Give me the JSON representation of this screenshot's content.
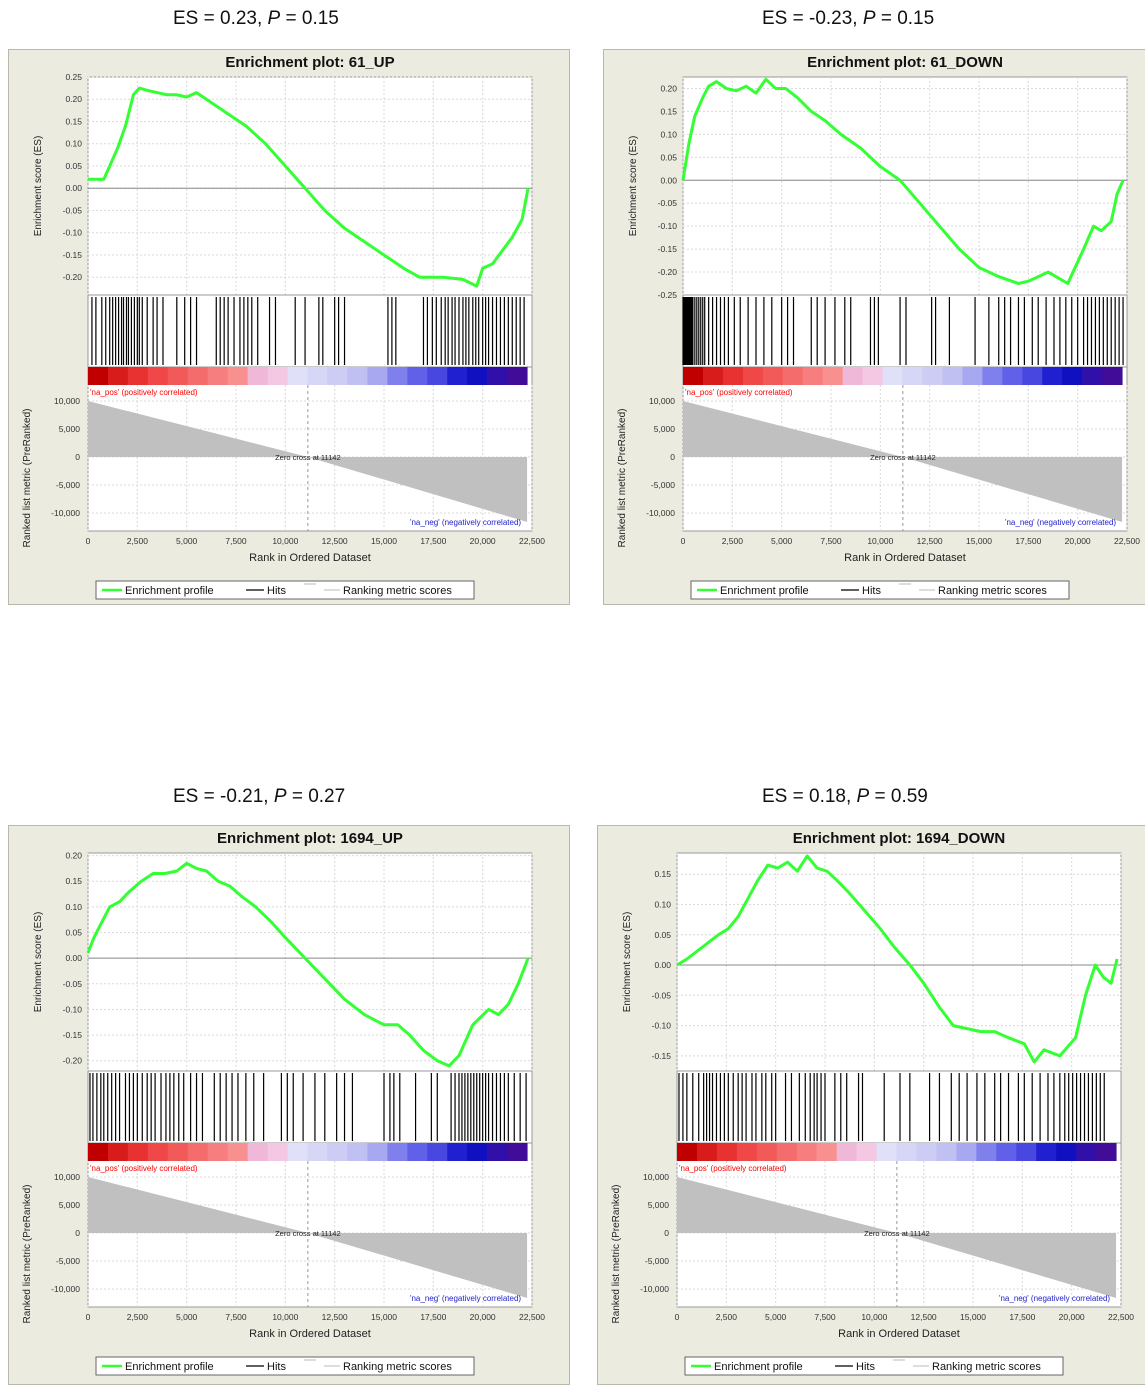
{
  "colors": {
    "frame": "#ecebe0",
    "frame_border": "#b9b8aa",
    "plot_bg": "#ffffff",
    "grid": "#d9d9d9",
    "es_line": "#33ff33",
    "hits": "#000000",
    "metric_fill": "#c0c0c0",
    "pos_label": "#ff0000",
    "neg_label": "#2222cc"
  },
  "common": {
    "ylabel_es": "Enrichment score (ES)",
    "ylabel_metric": "Ranked list metric (PreRanked)",
    "xlabel": "Rank in Ordered Dataset",
    "pos_label": "'na_pos' (positively correlated)",
    "neg_label": "'na_neg' (negatively correlated)",
    "zero_cross_label": "Zero cross at 11142",
    "legend": [
      "Enrichment profile",
      "Hits",
      "Ranking metric scores"
    ],
    "x_ticks": [
      "0",
      "2,500",
      "5,000",
      "7,500",
      "10,000",
      "12,500",
      "15,000",
      "17,500",
      "20,000",
      "22,500"
    ],
    "metric_ticks": [
      "10,000",
      "5,000",
      "0",
      "-5,000",
      "-10,000"
    ],
    "zero_cross_x": 11142
  },
  "captions": [
    {
      "pre": "ES = 0.23, ",
      "p": "P",
      "post": " = 0.15"
    },
    {
      "pre": "ES = -0.23, ",
      "p": "P",
      "post": " = 0.15"
    },
    {
      "pre": "ES = -0.21, ",
      "p": "P",
      "post": " = 0.27"
    },
    {
      "pre": "ES = 0.18, ",
      "p": "P",
      "post": " = 0.59"
    }
  ],
  "chart_data": [
    {
      "type": "line",
      "title": "Enrichment plot: 61_UP",
      "xlabel": "Rank in Ordered Dataset",
      "ylabel": "Enrichment score (ES)",
      "xlim": [
        0,
        22500
      ],
      "ylim": [
        -0.24,
        0.25
      ],
      "y_ticks": [
        "0.25",
        "0.20",
        "0.15",
        "0.10",
        "0.05",
        "0.00",
        "-0.05",
        "-0.10",
        "-0.15",
        "-0.20"
      ],
      "y_tick_values": [
        0.25,
        0.2,
        0.15,
        0.1,
        0.05,
        0.0,
        -0.05,
        -0.1,
        -0.15,
        -0.2
      ],
      "series": [
        {
          "name": "Enrichment profile",
          "x": [
            0,
            800,
            1200,
            1500,
            1900,
            2300,
            2600,
            3000,
            3500,
            4000,
            4500,
            5000,
            5500,
            6000,
            7000,
            8000,
            9000,
            10000,
            11000,
            12000,
            13000,
            14000,
            15000,
            16000,
            16800,
            17300,
            18000,
            19000,
            19700,
            20000,
            20500,
            21000,
            21500,
            22000,
            22300
          ],
          "y": [
            0.02,
            0.02,
            0.06,
            0.09,
            0.14,
            0.21,
            0.225,
            0.22,
            0.215,
            0.21,
            0.21,
            0.205,
            0.215,
            0.2,
            0.17,
            0.14,
            0.1,
            0.05,
            0.0,
            -0.05,
            -0.09,
            -0.12,
            -0.15,
            -0.18,
            -0.2,
            -0.2,
            -0.2,
            -0.205,
            -0.22,
            -0.18,
            -0.17,
            -0.14,
            -0.11,
            -0.07,
            0.0
          ]
        }
      ],
      "hits": [
        200,
        400,
        700,
        900,
        1100,
        1250,
        1400,
        1550,
        1700,
        1800,
        1950,
        2050,
        2200,
        2350,
        2500,
        2600,
        2750,
        3000,
        3300,
        3500,
        3800,
        4500,
        4900,
        5200,
        5500,
        6500,
        6700,
        6900,
        7100,
        7400,
        7700,
        7900,
        8100,
        8300,
        8600,
        9200,
        9500,
        10500,
        11000,
        11700,
        11900,
        12500,
        12700,
        13000,
        15200,
        15400,
        15600,
        17000,
        17200,
        17450,
        17650,
        17900,
        18100,
        18250,
        18450,
        18600,
        18800,
        19000,
        19150,
        19300,
        19500,
        19650,
        19800,
        20000,
        20150,
        20300,
        20500,
        20700,
        20900,
        21100,
        21300,
        21500,
        21700,
        21900,
        22100
      ]
    },
    {
      "type": "line",
      "title": "Enrichment plot: 61_DOWN",
      "xlabel": "Rank in Ordered Dataset",
      "ylabel": "Enrichment score (ES)",
      "xlim": [
        0,
        22500
      ],
      "ylim": [
        -0.25,
        0.225
      ],
      "y_ticks": [
        "0.20",
        "0.15",
        "0.10",
        "0.05",
        "0.00",
        "-0.05",
        "-0.10",
        "-0.15",
        "-0.20",
        "-0.25"
      ],
      "y_tick_values": [
        0.2,
        0.15,
        0.1,
        0.05,
        0.0,
        -0.05,
        -0.1,
        -0.15,
        -0.2,
        -0.25
      ],
      "series": [
        {
          "name": "Enrichment profile",
          "x": [
            0,
            300,
            600,
            1000,
            1300,
            1700,
            2200,
            2700,
            3200,
            3700,
            4200,
            4700,
            5200,
            5800,
            6500,
            7200,
            8000,
            9000,
            10000,
            11000,
            12000,
            13000,
            14000,
            15000,
            16000,
            17000,
            17500,
            18500,
            19500,
            20300,
            20800,
            21200,
            21700,
            22000,
            22300
          ],
          "y": [
            0.0,
            0.08,
            0.14,
            0.18,
            0.205,
            0.215,
            0.2,
            0.195,
            0.205,
            0.19,
            0.22,
            0.2,
            0.2,
            0.18,
            0.15,
            0.13,
            0.1,
            0.07,
            0.03,
            0.0,
            -0.05,
            -0.1,
            -0.15,
            -0.19,
            -0.21,
            -0.225,
            -0.22,
            -0.2,
            -0.225,
            -0.15,
            -0.1,
            -0.11,
            -0.09,
            -0.03,
            0.0
          ]
        }
      ],
      "hits": [
        0,
        50,
        100,
        150,
        200,
        250,
        300,
        350,
        400,
        450,
        500,
        600,
        700,
        800,
        900,
        1000,
        1100,
        1300,
        1500,
        1700,
        1900,
        2100,
        2300,
        2600,
        2900,
        3300,
        3700,
        4100,
        4500,
        5000,
        5300,
        5600,
        6500,
        6800,
        7200,
        7700,
        8200,
        8500,
        9500,
        9700,
        9900,
        11000,
        11300,
        12600,
        12800,
        13500,
        14800,
        15500,
        16000,
        16300,
        16600,
        17000,
        17300,
        17700,
        18000,
        18400,
        18800,
        19100,
        19400,
        19700,
        20000,
        20300,
        20500,
        20700,
        20900,
        21100,
        21300,
        21500,
        21700,
        21900,
        22100,
        22300
      ]
    },
    {
      "type": "line",
      "title": "Enrichment plot: 1694_UP",
      "xlabel": "Rank in Ordered Dataset",
      "ylabel": "Enrichment score (ES)",
      "xlim": [
        0,
        22500
      ],
      "ylim": [
        -0.22,
        0.205
      ],
      "y_ticks": [
        "0.20",
        "0.15",
        "0.10",
        "0.05",
        "0.00",
        "-0.05",
        "-0.10",
        "-0.15",
        "-0.20"
      ],
      "y_tick_values": [
        0.2,
        0.15,
        0.1,
        0.05,
        0.0,
        -0.05,
        -0.1,
        -0.15,
        -0.2
      ],
      "series": [
        {
          "name": "Enrichment profile",
          "x": [
            0,
            300,
            700,
            1100,
            1600,
            2100,
            2700,
            3300,
            3900,
            4500,
            5000,
            5500,
            6000,
            6600,
            7200,
            7800,
            8500,
            9300,
            10000,
            11000,
            12000,
            13000,
            14000,
            15000,
            15700,
            16300,
            17000,
            17700,
            18300,
            18800,
            19500,
            20300,
            20800,
            21300,
            21800,
            22300
          ],
          "y": [
            0.01,
            0.04,
            0.07,
            0.1,
            0.11,
            0.13,
            0.15,
            0.165,
            0.165,
            0.17,
            0.185,
            0.175,
            0.17,
            0.15,
            0.14,
            0.12,
            0.1,
            0.07,
            0.04,
            0.0,
            -0.04,
            -0.08,
            -0.11,
            -0.13,
            -0.13,
            -0.15,
            -0.18,
            -0.2,
            -0.21,
            -0.19,
            -0.13,
            -0.1,
            -0.11,
            -0.09,
            -0.05,
            0.0
          ]
        }
      ],
      "hits": [
        100,
        250,
        450,
        650,
        800,
        1000,
        1200,
        1400,
        1600,
        1900,
        2100,
        2300,
        2500,
        2750,
        3000,
        3200,
        3400,
        3700,
        3950,
        4150,
        4350,
        4600,
        4850,
        5200,
        5500,
        5800,
        6400,
        6700,
        7000,
        7300,
        7600,
        8000,
        8400,
        8900,
        9800,
        10100,
        10400,
        10900,
        11500,
        12000,
        12600,
        13000,
        13400,
        15000,
        15300,
        15500,
        15800,
        16600,
        17400,
        17700,
        18400,
        18600,
        18800,
        18950,
        19100,
        19250,
        19400,
        19550,
        19700,
        19850,
        20000,
        20150,
        20300,
        20500,
        20700,
        20900,
        21100,
        21300,
        21600,
        21900,
        22200
      ]
    },
    {
      "type": "line",
      "title": "Enrichment plot: 1694_DOWN",
      "xlabel": "Rank in Ordered Dataset",
      "ylabel": "Enrichment score (ES)",
      "xlim": [
        0,
        22500
      ],
      "ylim": [
        -0.175,
        0.185
      ],
      "y_ticks": [
        "0.15",
        "0.10",
        "0.05",
        "0.00",
        "-0.05",
        "-0.10",
        "-0.15"
      ],
      "y_tick_values": [
        0.15,
        0.1,
        0.05,
        0.0,
        -0.05,
        -0.1,
        -0.15
      ],
      "series": [
        {
          "name": "Enrichment profile",
          "x": [
            0,
            500,
            900,
            1300,
            1700,
            2100,
            2600,
            3100,
            3600,
            4100,
            4600,
            5100,
            5600,
            6100,
            6600,
            7100,
            7600,
            8100,
            8700,
            9500,
            10300,
            11000,
            11800,
            12500,
            13300,
            14000,
            14700,
            15400,
            16100,
            16800,
            17600,
            18100,
            18600,
            19400,
            20200,
            20700,
            21200,
            21600,
            22000,
            22300
          ],
          "y": [
            0.0,
            0.01,
            0.02,
            0.03,
            0.04,
            0.05,
            0.06,
            0.08,
            0.11,
            0.14,
            0.165,
            0.16,
            0.17,
            0.155,
            0.18,
            0.16,
            0.155,
            0.14,
            0.12,
            0.09,
            0.06,
            0.03,
            0.0,
            -0.03,
            -0.07,
            -0.1,
            -0.105,
            -0.11,
            -0.11,
            -0.12,
            -0.13,
            -0.16,
            -0.14,
            -0.15,
            -0.12,
            -0.05,
            0.0,
            -0.02,
            -0.03,
            0.01
          ]
        }
      ],
      "hits": [
        100,
        300,
        500,
        800,
        1100,
        1350,
        1500,
        1650,
        1800,
        2000,
        2200,
        2400,
        2600,
        2850,
        3100,
        3300,
        3500,
        3800,
        4000,
        4300,
        4500,
        4800,
        5000,
        5500,
        5800,
        6200,
        6500,
        6750,
        6950,
        7100,
        7300,
        7500,
        8000,
        8300,
        8600,
        9200,
        9400,
        10500,
        11300,
        11800,
        12800,
        13300,
        13900,
        14300,
        14700,
        15200,
        15600,
        16100,
        16400,
        16800,
        17300,
        17600,
        18000,
        18400,
        18800,
        19100,
        19400,
        19650,
        19850,
        20050,
        20250,
        20450,
        20650,
        20850,
        21050,
        21250,
        21450,
        21650
      ]
    }
  ]
}
